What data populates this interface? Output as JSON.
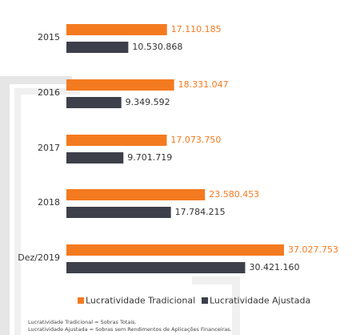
{
  "chart_data": {
    "type": "hbar",
    "categories": [
      "2015",
      "2016",
      "2017",
      "2018",
      "Dez/2019"
    ],
    "series": [
      {
        "name": "Lucratividade Tradicional",
        "color": "#f47a20",
        "values": [
          17110185,
          18331047,
          17073750,
          23580453,
          37027753
        ],
        "value_labels": [
          "17.110.185",
          "18.331.047",
          "17.073.750",
          "23.580.453",
          "37.027.753"
        ]
      },
      {
        "name": "Lucratividade Ajustada",
        "color": "#3d3f4a",
        "values": [
          10530868,
          9349592,
          9701719,
          17784215,
          30421160
        ],
        "value_labels": [
          "10.530.868",
          "9.349.592",
          "9.701.719",
          "17.784.215",
          "30.421.160"
        ]
      }
    ],
    "notes": [
      "Lucratividade Tradicional = Sobras Totais.",
      "Lucratividade Ajustada = Sobras sem Rendimentos de Aplicações Financeiras."
    ]
  }
}
